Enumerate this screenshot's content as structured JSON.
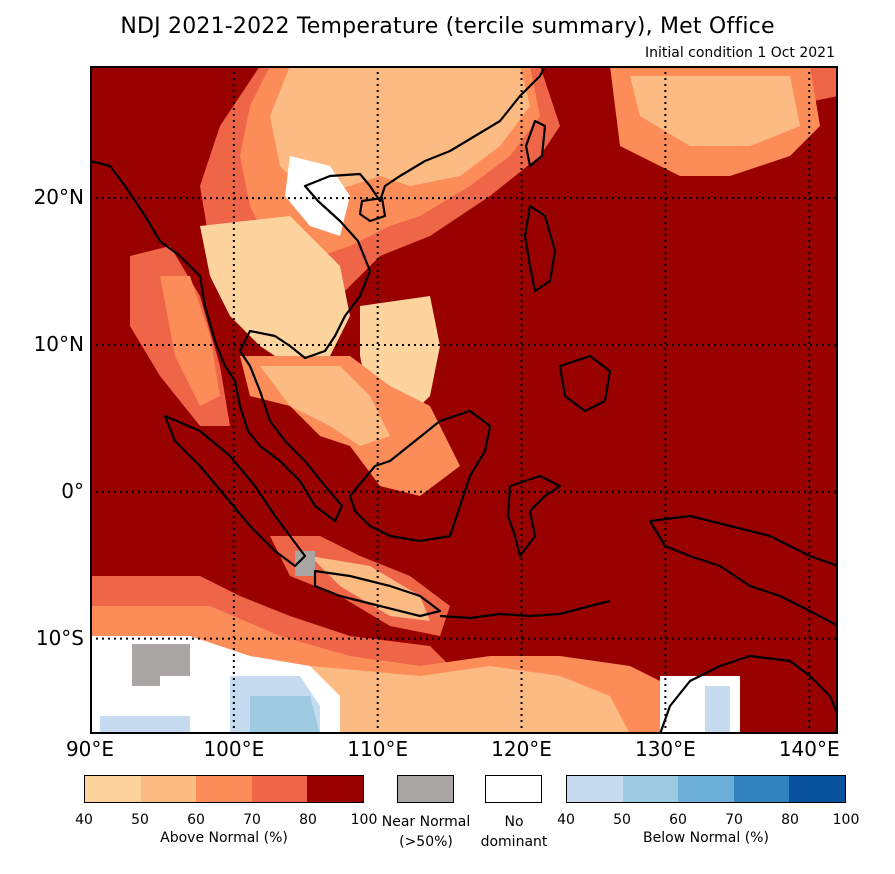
{
  "title": "NDJ 2021-2022 Temperature (tercile summary), Met Office",
  "subtitle": "Initial condition 1 Oct 2021",
  "map": {
    "lon_range": [
      90,
      142
    ],
    "lat_range": [
      -16.5,
      29
    ],
    "lon_labels": [
      {
        "lon": 90,
        "text": "90°E"
      },
      {
        "lon": 100,
        "text": "100°E"
      },
      {
        "lon": 110,
        "text": "110°E"
      },
      {
        "lon": 120,
        "text": "120°E"
      },
      {
        "lon": 130,
        "text": "130°E"
      },
      {
        "lon": 140,
        "text": "140°E"
      }
    ],
    "lat_labels": [
      {
        "lat": 20,
        "text": "20°N"
      },
      {
        "lat": 10,
        "text": "10°N"
      },
      {
        "lat": 0,
        "text": "0°"
      },
      {
        "lat": -10,
        "text": "10°S"
      }
    ],
    "grid_lons": [
      100,
      110,
      120,
      130,
      140
    ],
    "grid_lats": [
      20,
      10,
      0,
      -10
    ]
  },
  "legend": {
    "above_normal": {
      "title": "Above Normal (%)",
      "ticks": [
        "40",
        "50",
        "60",
        "70",
        "80",
        "100"
      ],
      "colors": [
        "#fdd49e",
        "#fdbb84",
        "#fc8d59",
        "#ef6548",
        "#990000"
      ]
    },
    "near_normal": {
      "line1": "Near Normal",
      "line2": "(>50%)",
      "color": "#aaa5a5"
    },
    "no_dominant": {
      "line1": "No",
      "line2": "dominant",
      "color": "#ffffff"
    },
    "below_normal": {
      "title": "Below Normal (%)",
      "ticks": [
        "40",
        "50",
        "60",
        "70",
        "80",
        "100"
      ],
      "colors": [
        "#c6dbef",
        "#9ecae1",
        "#6baed6",
        "#3182bd",
        "#08519c"
      ]
    }
  }
}
